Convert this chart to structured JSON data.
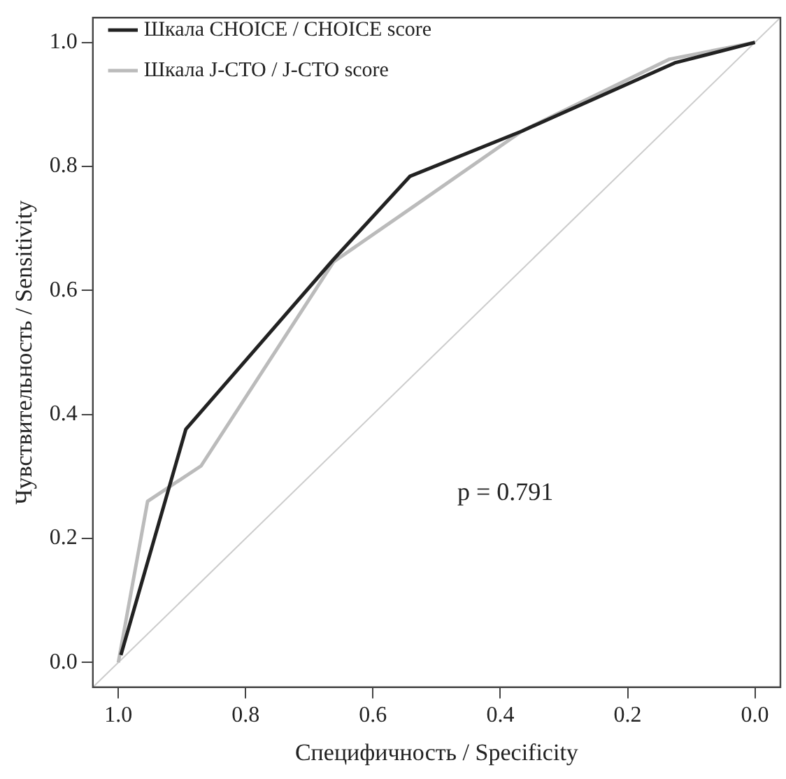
{
  "chart_data": {
    "type": "line",
    "xlabel": "Специфичность / Specificity",
    "ylabel": "Чувствительность / Sensitivity",
    "xlim": [
      1.04,
      -0.04
    ],
    "ylim": [
      -0.04,
      1.04
    ],
    "xticks": [
      {
        "value": 1,
        "label": "1.0"
      },
      0.8,
      0.6,
      0.4,
      0.2,
      {
        "value": 0,
        "label": "0.0"
      }
    ],
    "yticks": [
      {
        "value": 0,
        "label": "0.0"
      },
      0.2,
      0.4,
      0.6,
      0.8,
      {
        "value": 1,
        "label": "1.0"
      }
    ],
    "grid": false,
    "legend": "top left",
    "marker": "none",
    "line_style": "solid",
    "annotations": [
      "p = 0.791"
    ],
    "series": [
      {
        "name": "Шкала CHOICE / CHOICE score",
        "color": "#222222",
        "x": [
          0.996,
          0.894,
          0.662,
          0.542,
          0.366,
          0.126,
          0
        ],
        "values": [
          0.012,
          0.376,
          0.65,
          0.784,
          0.857,
          0.967,
          1
        ]
      },
      {
        "name": "Шкала J-CTO / J-CTO score",
        "color": "#bbbbbb",
        "x": [
          1,
          0.954,
          0.87,
          0.662,
          0.534,
          0.366,
          0.134,
          0
        ],
        "values": [
          0,
          0.26,
          0.317,
          0.646,
          0.737,
          0.857,
          0.973,
          1
        ]
      },
      {
        "color": "#cccccc",
        "x": [
          1.04,
          -0.04
        ],
        "values": [
          -0.04,
          1.04
        ]
      }
    ]
  }
}
